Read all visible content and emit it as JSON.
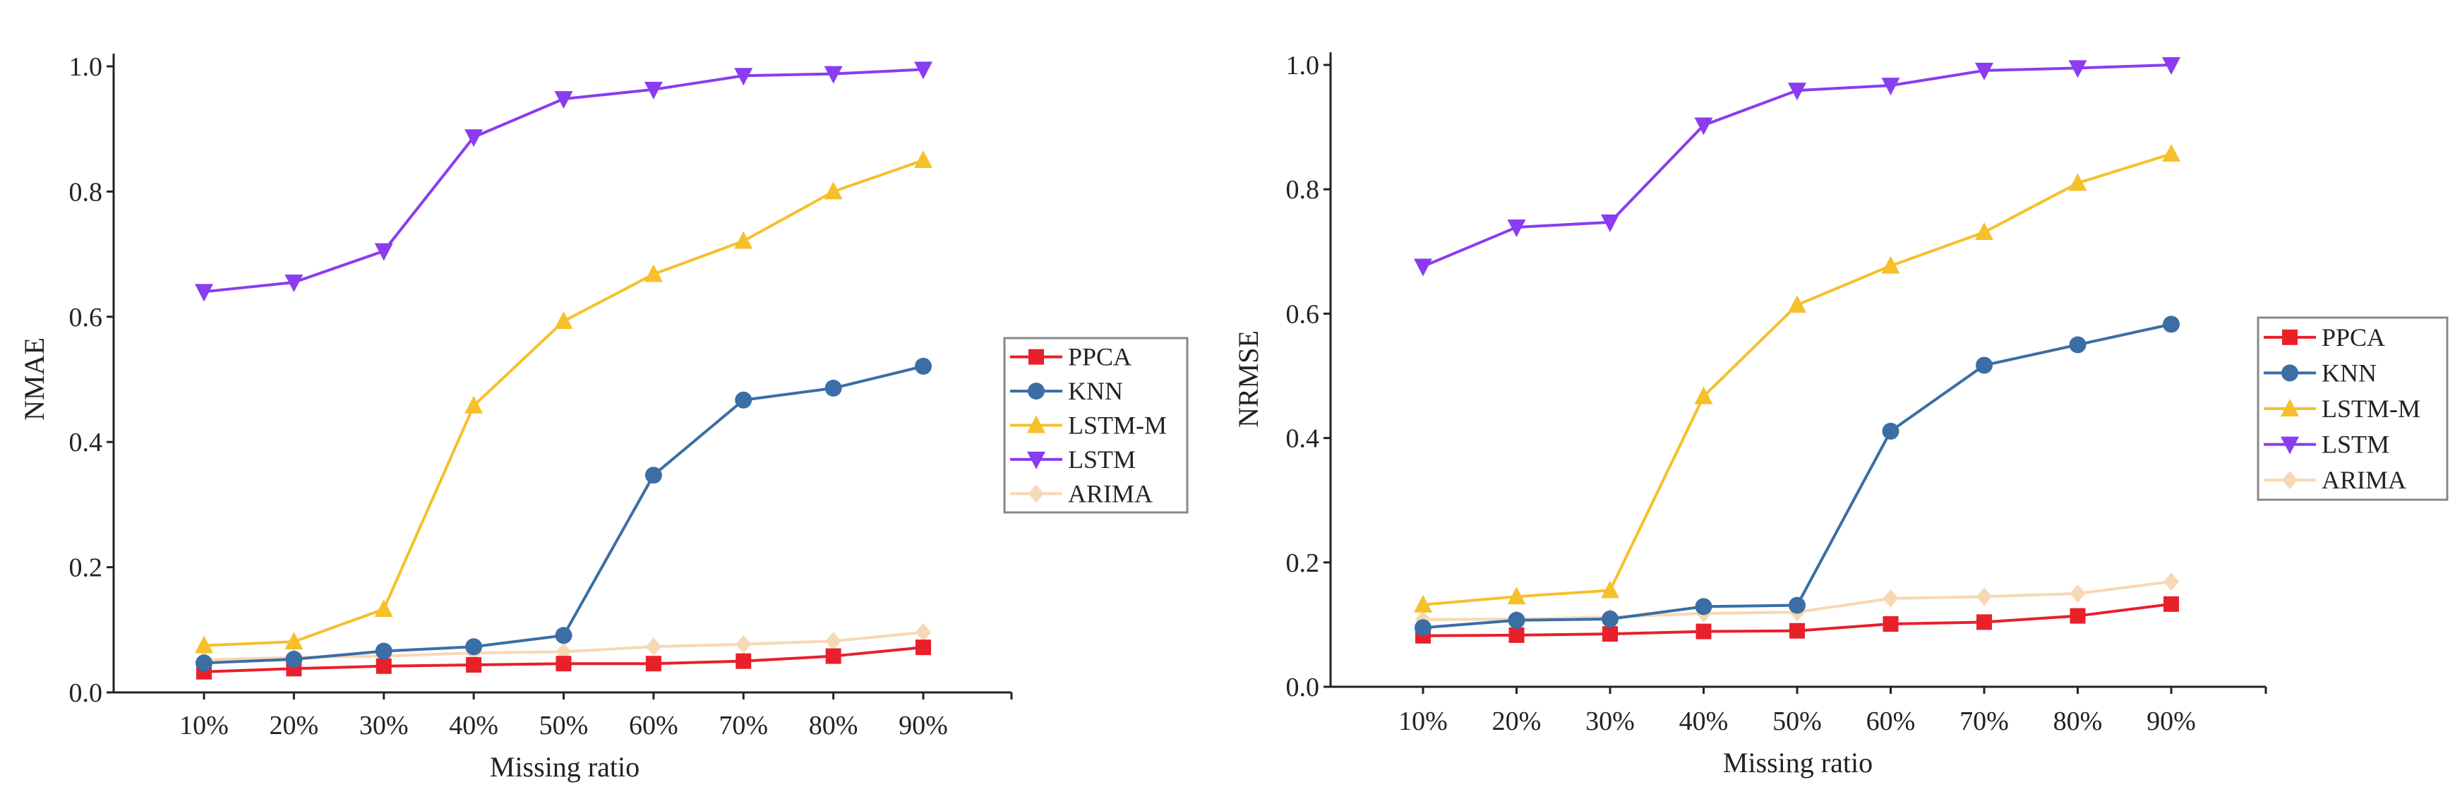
{
  "chart_data": [
    {
      "type": "line",
      "title": "",
      "xlabel": "Missing ratio",
      "ylabel": "NMAE",
      "ylim": [
        0,
        1.0
      ],
      "yticks": [
        "0.0",
        "0.2",
        "0.4",
        "0.6",
        "0.8",
        "1.0"
      ],
      "categories": [
        "10%",
        "20%",
        "30%",
        "40%",
        "50%",
        "60%",
        "70%",
        "80%",
        "90%"
      ],
      "legend_position": "right",
      "grid": false,
      "series": [
        {
          "name": "PPCA",
          "color": "#e8202a",
          "marker": "square",
          "values": [
            0.033,
            0.038,
            0.042,
            0.044,
            0.046,
            0.046,
            0.05,
            0.058,
            0.072
          ]
        },
        {
          "name": "KNN",
          "color": "#3a6ea5",
          "marker": "circle",
          "values": [
            0.047,
            0.053,
            0.066,
            0.073,
            0.091,
            0.347,
            0.467,
            0.486,
            0.521
          ]
        },
        {
          "name": "LSTM-M",
          "color": "#f5c02a",
          "marker": "triangle-up",
          "values": [
            0.075,
            0.081,
            0.133,
            0.458,
            0.593,
            0.668,
            0.721,
            0.8,
            0.85
          ]
        },
        {
          "name": "LSTM",
          "color": "#8a3cf0",
          "marker": "triangle-down",
          "values": [
            0.64,
            0.655,
            0.705,
            0.887,
            0.948,
            0.963,
            0.985,
            0.988,
            0.995
          ]
        },
        {
          "name": "ARIMA",
          "color": "#f7d8b5",
          "marker": "diamond",
          "values": [
            0.052,
            0.056,
            0.058,
            0.063,
            0.065,
            0.073,
            0.077,
            0.082,
            0.096
          ]
        }
      ]
    },
    {
      "type": "line",
      "title": "",
      "xlabel": "Missing ratio",
      "ylabel": "NRMSE",
      "ylim": [
        0,
        1.0
      ],
      "yticks": [
        "0.0",
        "0.2",
        "0.4",
        "0.6",
        "0.8",
        "1.0"
      ],
      "categories": [
        "10%",
        "20%",
        "30%",
        "40%",
        "50%",
        "60%",
        "70%",
        "80%",
        "90%"
      ],
      "legend_position": "right",
      "grid": false,
      "series": [
        {
          "name": "PPCA",
          "color": "#e8202a",
          "marker": "square",
          "values": [
            0.082,
            0.083,
            0.085,
            0.089,
            0.09,
            0.101,
            0.104,
            0.114,
            0.133
          ]
        },
        {
          "name": "KNN",
          "color": "#3a6ea5",
          "marker": "circle",
          "values": [
            0.095,
            0.107,
            0.109,
            0.129,
            0.131,
            0.411,
            0.517,
            0.55,
            0.583
          ]
        },
        {
          "name": "LSTM-M",
          "color": "#f5c02a",
          "marker": "triangle-up",
          "values": [
            0.132,
            0.145,
            0.155,
            0.467,
            0.614,
            0.677,
            0.731,
            0.81,
            0.857
          ]
        },
        {
          "name": "LSTM",
          "color": "#8a3cf0",
          "marker": "triangle-down",
          "values": [
            0.676,
            0.739,
            0.747,
            0.903,
            0.959,
            0.967,
            0.991,
            0.995,
            1.0
          ]
        },
        {
          "name": "ARIMA",
          "color": "#f7d8b5",
          "marker": "diamond",
          "values": [
            0.108,
            0.109,
            0.112,
            0.118,
            0.12,
            0.142,
            0.145,
            0.15,
            0.169
          ]
        }
      ]
    }
  ]
}
